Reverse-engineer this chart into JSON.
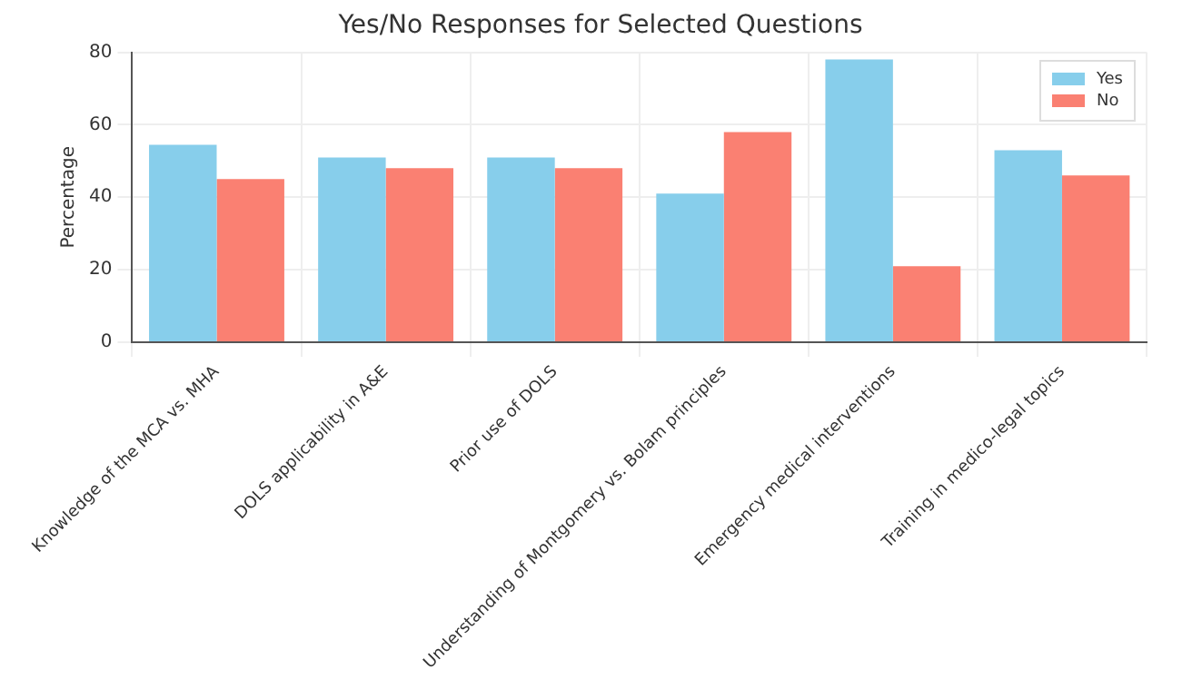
{
  "chart_data": {
    "type": "bar",
    "title": "Yes/No Responses for Selected Questions",
    "ylabel": "Percentage",
    "categories": [
      "Knowledge of the MCA vs. MHA",
      "DOLS applicability in A&E",
      "Prior use of DOLS",
      "Understanding of Montgomery vs. Bolam principles",
      "Emergency medical interventions",
      "Training in medico-legal topics"
    ],
    "series": [
      {
        "name": "Yes",
        "color": "#87ceeb",
        "values": [
          54.5,
          51,
          51,
          41,
          78,
          53
        ]
      },
      {
        "name": "No",
        "color": "#fa8072",
        "values": [
          45,
          48,
          48,
          58,
          21,
          46
        ]
      }
    ],
    "ylim": [
      0,
      80
    ],
    "yticks": [
      0,
      20,
      40,
      60,
      80
    ],
    "grid": true,
    "legend": "top right"
  }
}
